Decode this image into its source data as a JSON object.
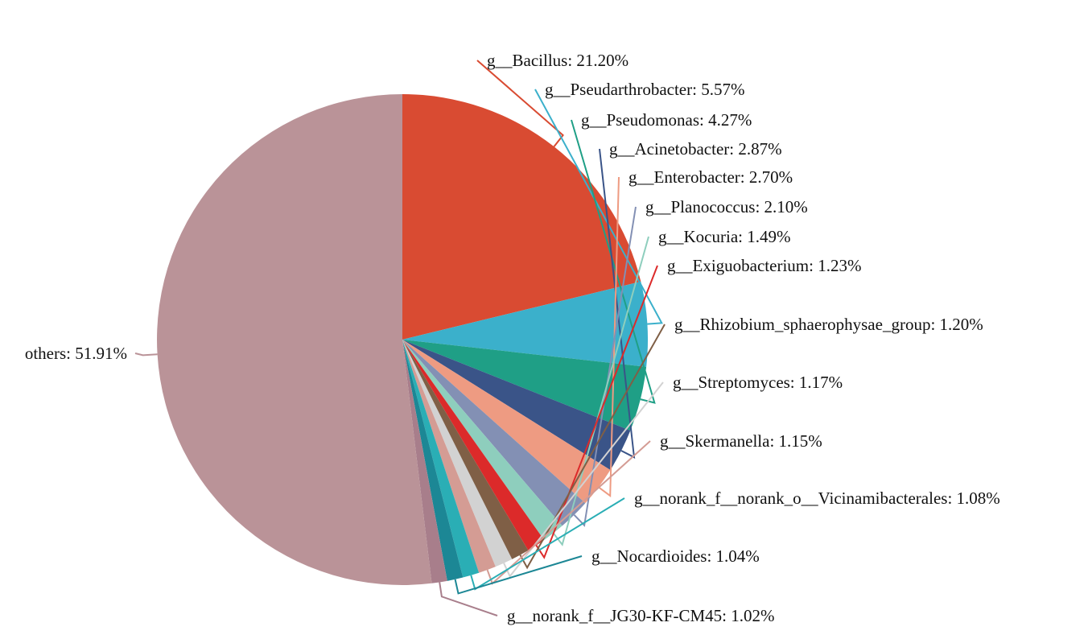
{
  "chart_data": {
    "type": "pie",
    "start_angle_deg": 0,
    "direction": "clockwise",
    "series": [
      {
        "name": "g__Bacillus",
        "label": "g__Bacillus: 21.20%",
        "value": 21.2,
        "color": "#d94b32"
      },
      {
        "name": "g__Pseudarthrobacter",
        "label": "g__Pseudarthrobacter: 5.57%",
        "value": 5.57,
        "color": "#3bb0cb"
      },
      {
        "name": "g__Pseudomonas",
        "label": "g__Pseudomonas: 4.27%",
        "value": 4.27,
        "color": "#1f9f86"
      },
      {
        "name": "g__Acinetobacter",
        "label": "g__Acinetobacter: 2.87%",
        "value": 2.87,
        "color": "#3a5488"
      },
      {
        "name": "g__Enterobacter",
        "label": "g__Enterobacter: 2.70%",
        "value": 2.7,
        "color": "#ee9b82"
      },
      {
        "name": "g__Planococcus",
        "label": "g__Planococcus: 2.10%",
        "value": 2.1,
        "color": "#8390b4"
      },
      {
        "name": "g__Kocuria",
        "label": "g__Kocuria: 1.49%",
        "value": 1.49,
        "color": "#8ecebd"
      },
      {
        "name": "g__Exiguobacterium",
        "label": "g__Exiguobacterium: 1.23%",
        "value": 1.23,
        "color": "#dc2a2a"
      },
      {
        "name": "g__Rhizobium_sphaerophysae_group",
        "label": "g__Rhizobium_sphaerophysae_group: 1.20%",
        "value": 1.2,
        "color": "#7f5f46"
      },
      {
        "name": "g__Streptomyces",
        "label": "g__Streptomyces: 1.17%",
        "value": 1.17,
        "color": "#d2d2d2"
      },
      {
        "name": "g__Skermanella",
        "label": "g__Skermanella: 1.15%",
        "value": 1.15,
        "color": "#d49c94"
      },
      {
        "name": "g__norank_f__norank_o__Vicinamibacterales",
        "label": "g__norank_f__norank_o__Vicinamibacterales: 1.08%",
        "value": 1.08,
        "color": "#2aaeb5"
      },
      {
        "name": "g__Nocardioides",
        "label": "g__Nocardioides: 1.04%",
        "value": 1.04,
        "color": "#1c8795"
      },
      {
        "name": "g__norank_f__JG30-KF-CM45",
        "label": "g__norank_f__JG30-KF-CM45: 1.02%",
        "value": 1.02,
        "color": "#a87e8b"
      },
      {
        "name": "others",
        "label": "others: 51.91%",
        "value": 51.91,
        "color": "#ba9398"
      }
    ]
  }
}
